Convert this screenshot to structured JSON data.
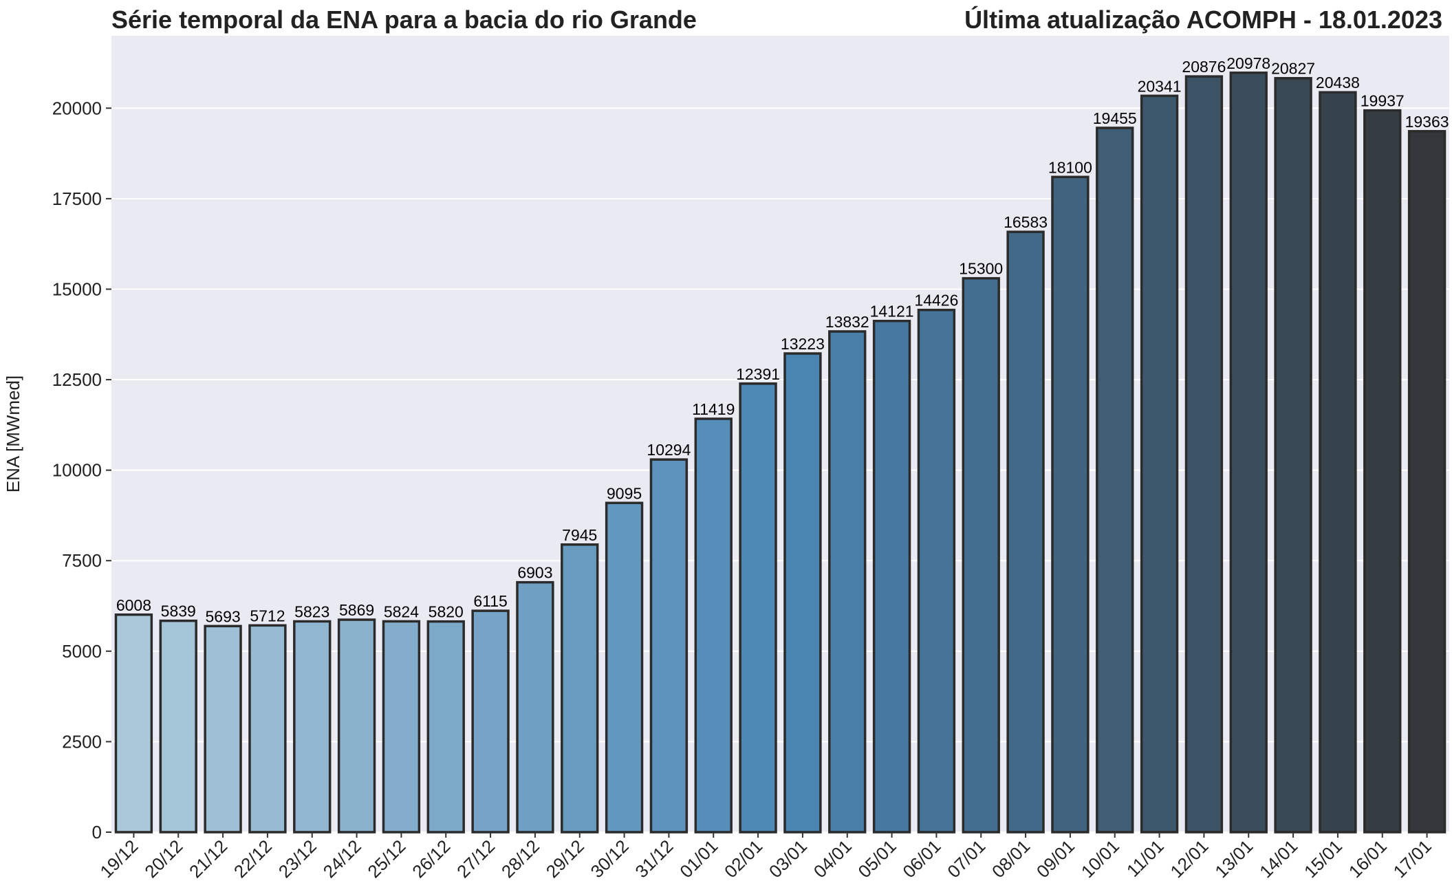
{
  "chart_data": {
    "type": "bar",
    "title": "Série temporal da ENA para a bacia do rio Grande",
    "subtitle": "Última atualização ACOMPH - 18.01.2023",
    "xlabel": "",
    "ylabel": "ENA [MWmed]",
    "ylim": [
      0,
      22000
    ],
    "yticks": [
      0,
      2500,
      5000,
      7500,
      10000,
      12500,
      15000,
      17500,
      20000
    ],
    "grid": true,
    "categories": [
      "19/12",
      "20/12",
      "21/12",
      "22/12",
      "23/12",
      "24/12",
      "25/12",
      "26/12",
      "27/12",
      "28/12",
      "29/12",
      "30/12",
      "31/12",
      "01/01",
      "02/01",
      "03/01",
      "04/01",
      "05/01",
      "06/01",
      "07/01",
      "08/01",
      "09/01",
      "10/01",
      "11/01",
      "12/01",
      "13/01",
      "14/01",
      "15/01",
      "16/01",
      "17/01"
    ],
    "values": [
      6008,
      5839,
      5693,
      5712,
      5823,
      5869,
      5824,
      5820,
      6115,
      6903,
      7945,
      9095,
      10294,
      11419,
      12391,
      13223,
      13832,
      14121,
      14426,
      15300,
      16583,
      18100,
      19455,
      20341,
      20876,
      20978,
      20827,
      20438,
      19937,
      19363
    ],
    "colors": {
      "background": "#eaeaf2",
      "grid": "#ffffff",
      "bar_edge": "#2b2b2b",
      "palette_start": "#abc8da",
      "palette_mid": "#4b87b5",
      "palette_end": "#33373b"
    }
  }
}
